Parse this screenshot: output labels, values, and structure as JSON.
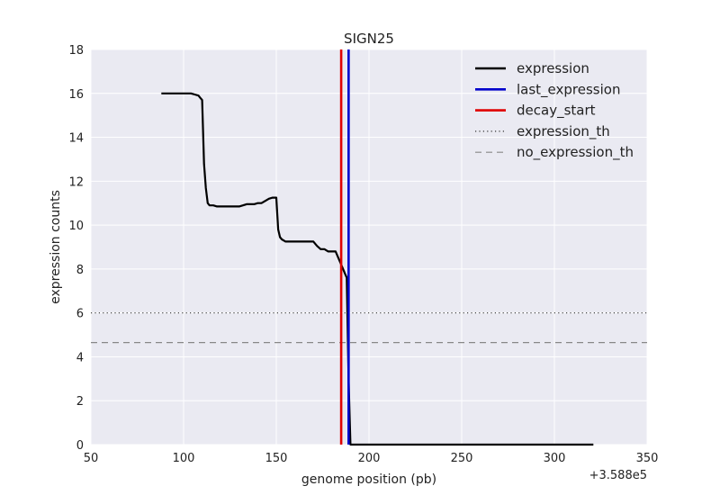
{
  "chart_data": {
    "type": "line",
    "title": "SIGN25",
    "xlabel": "genome position (pb)",
    "ylabel": "expression counts",
    "x_offset_label": "+3.588e5",
    "xlim": [
      50,
      350
    ],
    "ylim": [
      0,
      18
    ],
    "xticks": [
      50,
      100,
      150,
      200,
      250,
      300,
      350
    ],
    "yticks": [
      0,
      2,
      4,
      6,
      8,
      10,
      12,
      14,
      16,
      18
    ],
    "grid": true,
    "legend_position": "top-right",
    "series": [
      {
        "name": "expression",
        "color": "#000000",
        "style": "solid",
        "x": [
          88,
          100,
          104,
          106,
          108,
          109,
          110,
          111,
          112,
          113,
          114,
          116,
          118,
          120,
          125,
          130,
          132,
          134,
          136,
          138,
          140,
          142,
          144,
          146,
          148,
          150,
          151,
          152,
          153,
          155,
          157,
          160,
          165,
          170,
          172,
          174,
          176,
          178,
          180,
          182,
          184,
          185,
          186,
          187,
          188,
          189,
          190,
          200,
          250,
          300,
          321
        ],
        "y": [
          16.0,
          16.0,
          16.0,
          15.95,
          15.9,
          15.8,
          15.7,
          12.8,
          11.7,
          11.0,
          10.9,
          10.9,
          10.85,
          10.85,
          10.85,
          10.85,
          10.9,
          10.95,
          10.95,
          10.95,
          11.0,
          11.0,
          11.1,
          11.2,
          11.25,
          11.25,
          9.8,
          9.45,
          9.35,
          9.25,
          9.25,
          9.25,
          9.25,
          9.25,
          9.05,
          8.9,
          8.9,
          8.8,
          8.8,
          8.8,
          8.4,
          8.2,
          8.0,
          7.8,
          7.6,
          3.0,
          0.0,
          0.0,
          0.0,
          0.0,
          0.0
        ]
      },
      {
        "name": "last_expression",
        "color": "#0000cc",
        "style": "solid",
        "vertical_x": 189
      },
      {
        "name": "decay_start",
        "color": "#e00000",
        "style": "solid",
        "vertical_x": 185
      },
      {
        "name": "expression_th",
        "color": "#333333",
        "style": "dotted",
        "horizontal_y": 6.0
      },
      {
        "name": "no_expression_th",
        "color": "#888888",
        "style": "dashed",
        "horizontal_y": 4.65
      }
    ]
  }
}
